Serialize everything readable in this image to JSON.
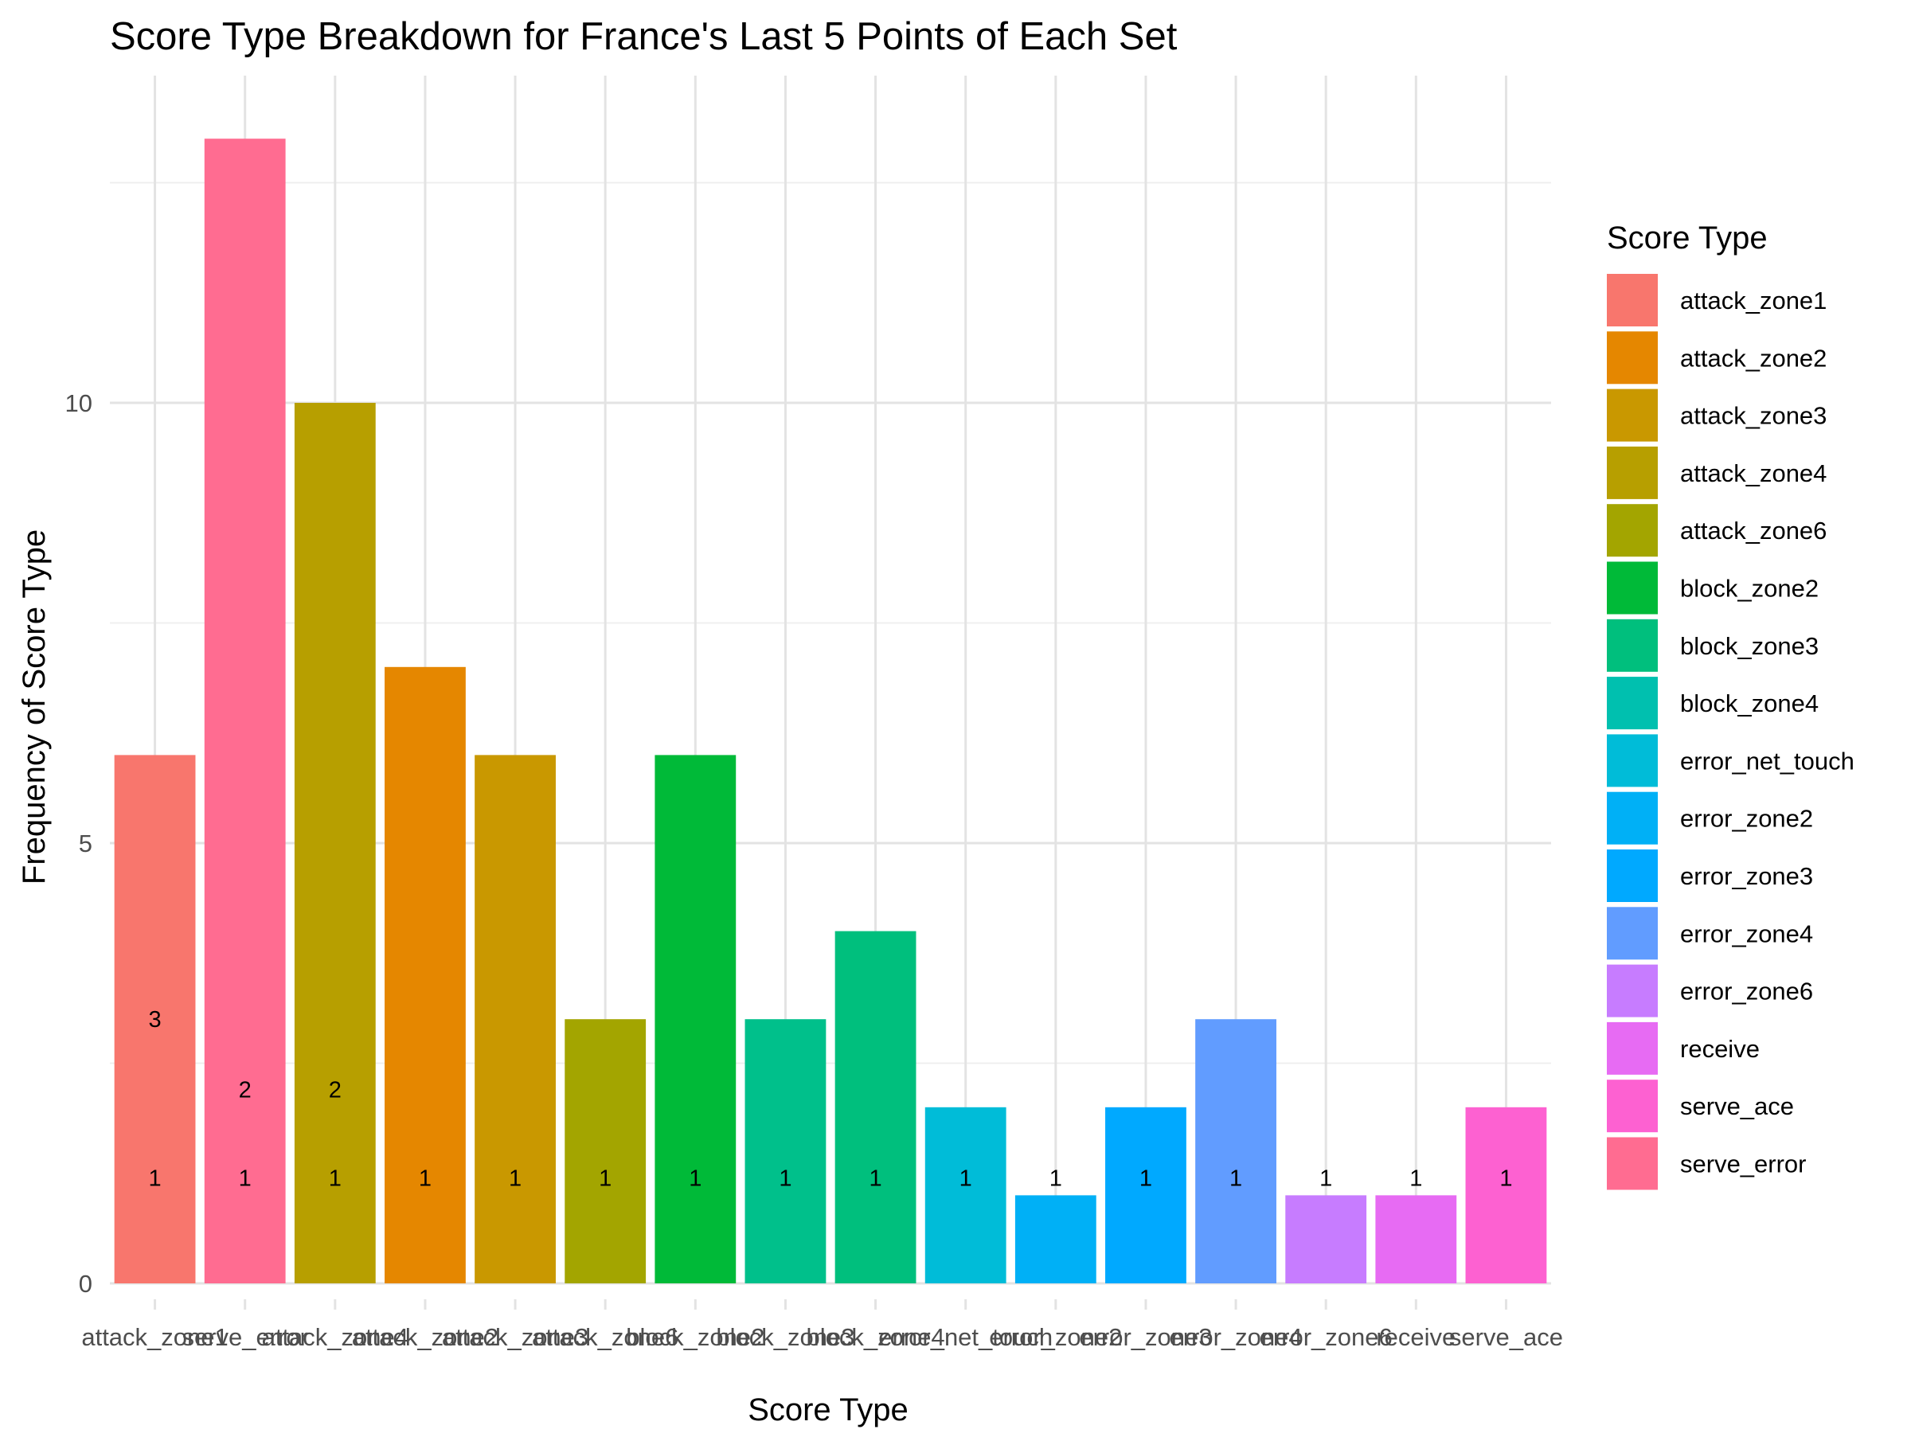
{
  "chart_data": {
    "type": "bar",
    "title": "Score Type Breakdown for France's Last 5 Points of Each Set",
    "xlabel": "Score Type",
    "ylabel": "Frequency of Score Type",
    "ylim": [
      0,
      13.6
    ],
    "yticks": [
      0,
      5,
      10
    ],
    "grid": true,
    "legend_position": "right",
    "legend_title": "Score Type",
    "categories": [
      "attack_zone1",
      "serve_error",
      "attack_zone4",
      "attack_zone2",
      "attack_zone3",
      "attack_zone6",
      "block_zone2",
      "block_zone3",
      "block_zone4",
      "error_net_touch",
      "error_zone2",
      "error_zone3",
      "error_zone4",
      "error_zone6",
      "receive",
      "serve_ace"
    ],
    "x_tick_labels": [
      "attack_zone1",
      "serve_error",
      "attack_zone4",
      "attack_zone2",
      "attack_zone3",
      "attack_zone6",
      "block_zone2",
      "block_zone3",
      "block_zone4",
      "error_net_touch",
      "error_zone2",
      "error_zone3",
      "error_zone4",
      "error_zone6",
      "receive",
      "serve_ace"
    ],
    "values": [
      6,
      13,
      10,
      7,
      6,
      3,
      6,
      3,
      4,
      2,
      1,
      2,
      3,
      1,
      1,
      2
    ],
    "bar_colors": [
      "#F8766D",
      "#FF6C91",
      "#B79F00",
      "#E58700",
      "#C99800",
      "#A3A500",
      "#00BA38",
      "#00C08B",
      "#00BF7D",
      "#00BCD8",
      "#00B0F6",
      "#00A9FF",
      "#619CFF",
      "#C77CFF",
      "#E76BF3",
      "#FD61D1"
    ],
    "data_labels": [
      {
        "category": "attack_zone1",
        "value": 3,
        "label": "3"
      },
      {
        "category": "attack_zone1",
        "value": 1.2,
        "label": "1"
      },
      {
        "category": "serve_error",
        "value": 2.2,
        "label": "2"
      },
      {
        "category": "serve_error",
        "value": 1.2,
        "label": "1"
      },
      {
        "category": "attack_zone4",
        "value": 2.2,
        "label": "2"
      },
      {
        "category": "attack_zone4",
        "value": 1.2,
        "label": "1"
      },
      {
        "category": "attack_zone2",
        "value": 1.2,
        "label": "1"
      },
      {
        "category": "attack_zone3",
        "value": 1.2,
        "label": "1"
      },
      {
        "category": "attack_zone6",
        "value": 1.2,
        "label": "1"
      },
      {
        "category": "block_zone2",
        "value": 1.2,
        "label": "1"
      },
      {
        "category": "block_zone3",
        "value": 1.2,
        "label": "1"
      },
      {
        "category": "block_zone4",
        "value": 1.2,
        "label": "1"
      },
      {
        "category": "error_net_touch",
        "value": 1.2,
        "label": "1"
      },
      {
        "category": "error_zone2",
        "value": 1.2,
        "label": "1"
      },
      {
        "category": "error_zone3",
        "value": 1.2,
        "label": "1"
      },
      {
        "category": "error_zone4",
        "value": 1.2,
        "label": "1"
      },
      {
        "category": "error_zone6",
        "value": 1.2,
        "label": "1"
      },
      {
        "category": "receive",
        "value": 1.2,
        "label": "1"
      },
      {
        "category": "serve_ace",
        "value": 1.2,
        "label": "1"
      }
    ],
    "legend": [
      {
        "label": "attack_zone1",
        "color": "#F8766D"
      },
      {
        "label": "attack_zone2",
        "color": "#E58700"
      },
      {
        "label": "attack_zone3",
        "color": "#C99800"
      },
      {
        "label": "attack_zone4",
        "color": "#B79F00"
      },
      {
        "label": "attack_zone6",
        "color": "#A3A500"
      },
      {
        "label": "block_zone2",
        "color": "#00BA38"
      },
      {
        "label": "block_zone3",
        "color": "#00BF7D"
      },
      {
        "label": "block_zone4",
        "color": "#00C0AF"
      },
      {
        "label": "error_net_touch",
        "color": "#00BCD8"
      },
      {
        "label": "error_zone2",
        "color": "#00B0F6"
      },
      {
        "label": "error_zone3",
        "color": "#00A9FF"
      },
      {
        "label": "error_zone4",
        "color": "#619CFF"
      },
      {
        "label": "error_zone6",
        "color": "#C77CFF"
      },
      {
        "label": "receive",
        "color": "#E76BF3"
      },
      {
        "label": "serve_ace",
        "color": "#FD61D1"
      },
      {
        "label": "serve_error",
        "color": "#FF6C91"
      }
    ]
  }
}
